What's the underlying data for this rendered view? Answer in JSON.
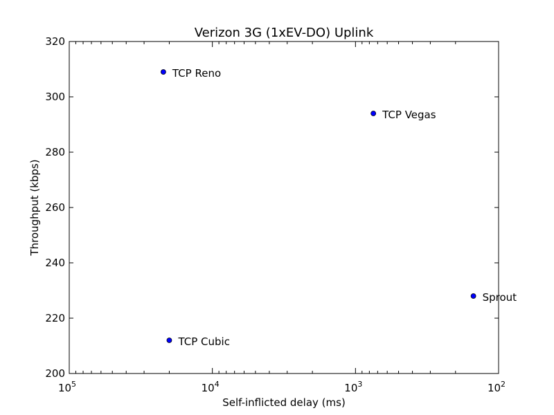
{
  "chart_data": {
    "type": "scatter",
    "title": "Verizon 3G (1xEV-DO) Uplink",
    "xlabel": "Self-inflicted delay (ms)",
    "ylabel": "Throughput (kbps)",
    "x_scale": "log",
    "x_inverted": true,
    "xlim": [
      100000,
      100
    ],
    "ylim": [
      200,
      320
    ],
    "x_ticks": [
      {
        "value": 100000,
        "base": "10",
        "exp": "5"
      },
      {
        "value": 10000,
        "base": "10",
        "exp": "4"
      },
      {
        "value": 1000,
        "base": "10",
        "exp": "3"
      },
      {
        "value": 100,
        "base": "10",
        "exp": "2"
      }
    ],
    "y_ticks": [
      "200",
      "220",
      "240",
      "260",
      "280",
      "300",
      "320"
    ],
    "grid": false,
    "legend": "none",
    "points": [
      {
        "label": "TCP Reno",
        "x": 22000,
        "y": 309
      },
      {
        "label": "TCP Vegas",
        "x": 750,
        "y": 294
      },
      {
        "label": "Sprout",
        "x": 150,
        "y": 228
      },
      {
        "label": "TCP Cubic",
        "x": 20000,
        "y": 212
      }
    ],
    "marker_color": "#0000ff"
  }
}
